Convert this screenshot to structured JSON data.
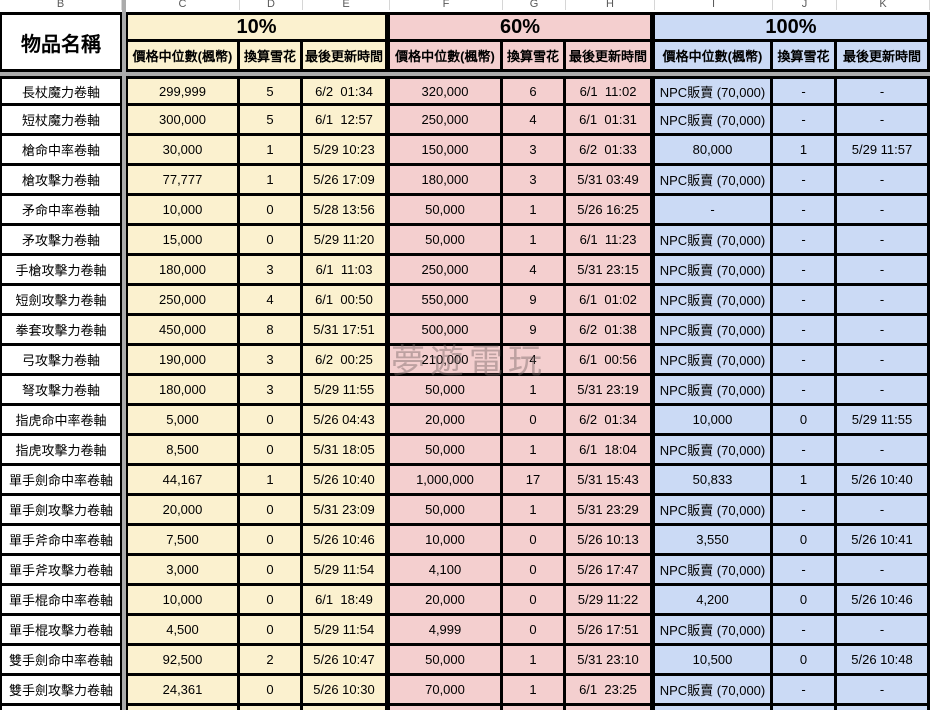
{
  "spreadsheet": {
    "column_letters": [
      "B",
      "C",
      "D",
      "E",
      "F",
      "G",
      "H",
      "I",
      "J",
      "K"
    ]
  },
  "header": {
    "item_name": "物品名稱",
    "groups": [
      {
        "label": "10%"
      },
      {
        "label": "60%"
      },
      {
        "label": "100%"
      }
    ],
    "sub_columns": [
      "價格中位數(楓幣)",
      "換算雪花",
      "最後更新時間"
    ]
  },
  "watermark": {
    "text": "夢遊電玩"
  },
  "colors": {
    "group_10": "#fbf1cf",
    "group_60": "#f4cfcf",
    "group_100": "#cbdaf5",
    "pane_divider": "#ababab",
    "grid_border": "#000000"
  },
  "rows": [
    {
      "name": "長杖魔力卷軸",
      "g10": {
        "price": "299,999",
        "snow": "5",
        "time": "6/2  01:34"
      },
      "g60": {
        "price": "320,000",
        "snow": "6",
        "time": "6/1  11:02"
      },
      "g100": {
        "price": "NPC販賣 (70,000)",
        "snow": "-",
        "time": "-"
      }
    },
    {
      "name": "短杖魔力卷軸",
      "g10": {
        "price": "300,000",
        "snow": "5",
        "time": "6/1  12:57"
      },
      "g60": {
        "price": "250,000",
        "snow": "4",
        "time": "6/1  01:31"
      },
      "g100": {
        "price": "NPC販賣 (70,000)",
        "snow": "-",
        "time": "-"
      }
    },
    {
      "name": "槍命中率卷軸",
      "g10": {
        "price": "30,000",
        "snow": "1",
        "time": "5/29 10:23"
      },
      "g60": {
        "price": "150,000",
        "snow": "3",
        "time": "6/2  01:33"
      },
      "g100": {
        "price": "80,000",
        "snow": "1",
        "time": "5/29 11:57"
      }
    },
    {
      "name": "槍攻擊力卷軸",
      "g10": {
        "price": "77,777",
        "snow": "1",
        "time": "5/26 17:09"
      },
      "g60": {
        "price": "180,000",
        "snow": "3",
        "time": "5/31 03:49"
      },
      "g100": {
        "price": "NPC販賣 (70,000)",
        "snow": "-",
        "time": "-"
      }
    },
    {
      "name": "矛命中率卷軸",
      "g10": {
        "price": "10,000",
        "snow": "0",
        "time": "5/28 13:56"
      },
      "g60": {
        "price": "50,000",
        "snow": "1",
        "time": "5/26 16:25"
      },
      "g100": {
        "price": "-",
        "snow": "-",
        "time": "-"
      }
    },
    {
      "name": "矛攻擊力卷軸",
      "g10": {
        "price": "15,000",
        "snow": "0",
        "time": "5/29 11:20"
      },
      "g60": {
        "price": "50,000",
        "snow": "1",
        "time": "6/1  11:23"
      },
      "g100": {
        "price": "NPC販賣 (70,000)",
        "snow": "-",
        "time": "-"
      }
    },
    {
      "name": "手槍攻擊力卷軸",
      "g10": {
        "price": "180,000",
        "snow": "3",
        "time": "6/1  11:03"
      },
      "g60": {
        "price": "250,000",
        "snow": "4",
        "time": "5/31 23:15"
      },
      "g100": {
        "price": "NPC販賣 (70,000)",
        "snow": "-",
        "time": "-"
      }
    },
    {
      "name": "短劍攻擊力卷軸",
      "g10": {
        "price": "250,000",
        "snow": "4",
        "time": "6/1  00:50"
      },
      "g60": {
        "price": "550,000",
        "snow": "9",
        "time": "6/1  01:02"
      },
      "g100": {
        "price": "NPC販賣 (70,000)",
        "snow": "-",
        "time": "-"
      }
    },
    {
      "name": "拳套攻擊力卷軸",
      "g10": {
        "price": "450,000",
        "snow": "8",
        "time": "5/31 17:51"
      },
      "g60": {
        "price": "500,000",
        "snow": "9",
        "time": "6/2  01:38"
      },
      "g100": {
        "price": "NPC販賣 (70,000)",
        "snow": "-",
        "time": "-"
      }
    },
    {
      "name": "弓攻擊力卷軸",
      "g10": {
        "price": "190,000",
        "snow": "3",
        "time": "6/2  00:25"
      },
      "g60": {
        "price": "210,000",
        "snow": "4",
        "time": "6/1  00:56"
      },
      "g100": {
        "price": "NPC販賣 (70,000)",
        "snow": "-",
        "time": "-"
      }
    },
    {
      "name": "弩攻擊力卷軸",
      "g10": {
        "price": "180,000",
        "snow": "3",
        "time": "5/29 11:55"
      },
      "g60": {
        "price": "50,000",
        "snow": "1",
        "time": "5/31 23:19"
      },
      "g100": {
        "price": "NPC販賣 (70,000)",
        "snow": "-",
        "time": "-"
      }
    },
    {
      "name": "指虎命中率卷軸",
      "g10": {
        "price": "5,000",
        "snow": "0",
        "time": "5/26 04:43"
      },
      "g60": {
        "price": "20,000",
        "snow": "0",
        "time": "6/2  01:34"
      },
      "g100": {
        "price": "10,000",
        "snow": "0",
        "time": "5/29 11:55"
      }
    },
    {
      "name": "指虎攻擊力卷軸",
      "g10": {
        "price": "8,500",
        "snow": "0",
        "time": "5/31 18:05"
      },
      "g60": {
        "price": "50,000",
        "snow": "1",
        "time": "6/1  18:04"
      },
      "g100": {
        "price": "NPC販賣 (70,000)",
        "snow": "-",
        "time": "-"
      }
    },
    {
      "name": "單手劍命中率卷軸",
      "g10": {
        "price": "44,167",
        "snow": "1",
        "time": "5/26 10:40"
      },
      "g60": {
        "price": "1,000,000",
        "snow": "17",
        "time": "5/31 15:43"
      },
      "g100": {
        "price": "50,833",
        "snow": "1",
        "time": "5/26 10:40"
      }
    },
    {
      "name": "單手劍攻擊力卷軸",
      "g10": {
        "price": "20,000",
        "snow": "0",
        "time": "5/31 23:09"
      },
      "g60": {
        "price": "50,000",
        "snow": "1",
        "time": "5/31 23:29"
      },
      "g100": {
        "price": "NPC販賣 (70,000)",
        "snow": "-",
        "time": "-"
      }
    },
    {
      "name": "單手斧命中率卷軸",
      "g10": {
        "price": "7,500",
        "snow": "0",
        "time": "5/26 10:46"
      },
      "g60": {
        "price": "10,000",
        "snow": "0",
        "time": "5/26 10:13"
      },
      "g100": {
        "price": "3,550",
        "snow": "0",
        "time": "5/26 10:41"
      }
    },
    {
      "name": "單手斧攻擊力卷軸",
      "g10": {
        "price": "3,000",
        "snow": "0",
        "time": "5/29 11:54"
      },
      "g60": {
        "price": "4,100",
        "snow": "0",
        "time": "5/26 17:47"
      },
      "g100": {
        "price": "NPC販賣 (70,000)",
        "snow": "-",
        "time": "-"
      }
    },
    {
      "name": "單手棍命中率卷軸",
      "g10": {
        "price": "10,000",
        "snow": "0",
        "time": "6/1  18:49"
      },
      "g60": {
        "price": "20,000",
        "snow": "0",
        "time": "5/29 11:22"
      },
      "g100": {
        "price": "4,200",
        "snow": "0",
        "time": "5/26 10:46"
      }
    },
    {
      "name": "單手棍攻擊力卷軸",
      "g10": {
        "price": "4,500",
        "snow": "0",
        "time": "5/29 11:54"
      },
      "g60": {
        "price": "4,999",
        "snow": "0",
        "time": "5/26 17:51"
      },
      "g100": {
        "price": "NPC販賣 (70,000)",
        "snow": "-",
        "time": "-"
      }
    },
    {
      "name": "雙手劍命中率卷軸",
      "g10": {
        "price": "92,500",
        "snow": "2",
        "time": "5/26 10:47"
      },
      "g60": {
        "price": "50,000",
        "snow": "1",
        "time": "5/31 23:10"
      },
      "g100": {
        "price": "10,500",
        "snow": "0",
        "time": "5/26 10:48"
      }
    },
    {
      "name": "雙手劍攻擊力卷軸",
      "g10": {
        "price": "24,361",
        "snow": "0",
        "time": "5/26 10:30"
      },
      "g60": {
        "price": "70,000",
        "snow": "1",
        "time": "6/1  23:25"
      },
      "g100": {
        "price": "NPC販賣 (70,000)",
        "snow": "-",
        "time": "-"
      }
    }
  ]
}
